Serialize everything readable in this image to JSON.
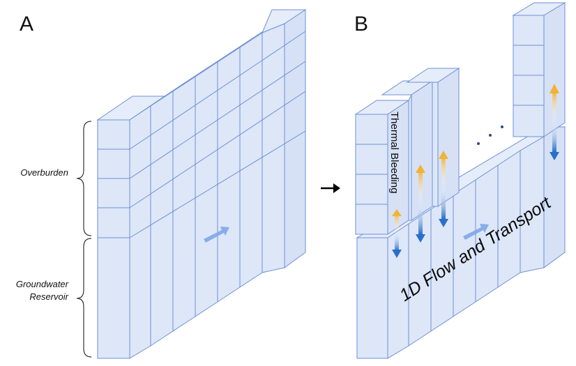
{
  "panels": {
    "a": {
      "letter": "A"
    },
    "b": {
      "letter": "B"
    }
  },
  "labels": {
    "overburden": "Overburden",
    "reservoir_line1": "Groundwater",
    "reservoir_line2": "Reservoir",
    "thermal_bleeding": "Thermal Bleeding",
    "flow_transport": "1D Flow and Transport",
    "ellipsis": ". . ."
  },
  "colors": {
    "cell_fill": "#dde7f8",
    "cell_stroke": "#6f8fd6",
    "flow_arrow": "#7ea6e8",
    "heat_warm": "#f2b233",
    "heat_cool": "#2a6fc9"
  }
}
